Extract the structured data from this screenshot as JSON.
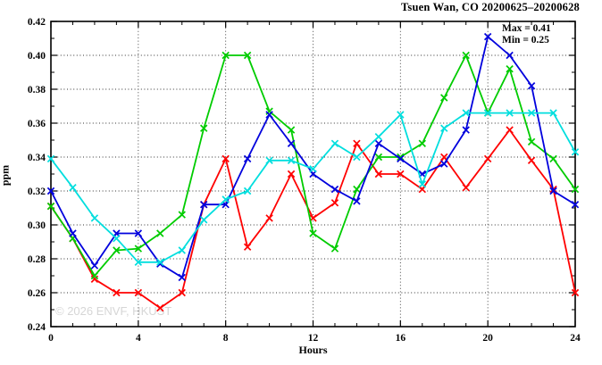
{
  "title": "Tsuen Wan, CO 20200625–20200628",
  "annotation": {
    "max_label": "Max = 0.41",
    "min_label": "Min = 0.25"
  },
  "watermark": "© 2026 ENVF, HKUST",
  "chart_data": {
    "type": "line",
    "title": "Tsuen Wan, CO 20200625–20200628",
    "xlabel": "Hours",
    "ylabel": "ppm",
    "xlim": [
      0,
      24
    ],
    "ylim": [
      0.24,
      0.42
    ],
    "x_ticks": [
      0,
      4,
      8,
      12,
      16,
      20,
      24
    ],
    "y_ticks": [
      0.24,
      0.26,
      0.28,
      0.3,
      0.32,
      0.34,
      0.36,
      0.38,
      0.4,
      0.42
    ],
    "x_minor_step": 1,
    "y_minor_step": 0.01,
    "grid": true,
    "legend": "none",
    "marker": "x",
    "x": [
      0,
      1,
      2,
      3,
      4,
      5,
      6,
      7,
      8,
      9,
      10,
      11,
      12,
      13,
      14,
      15,
      16,
      17,
      18,
      19,
      20,
      21,
      22,
      23,
      24
    ],
    "series": [
      {
        "name": "red",
        "color": "#ff0000",
        "values": [
          0.311,
          0.292,
          0.268,
          0.26,
          0.26,
          0.251,
          0.26,
          0.312,
          0.339,
          0.287,
          0.304,
          0.33,
          0.304,
          0.313,
          0.348,
          0.33,
          0.33,
          0.321,
          0.34,
          0.322,
          0.339,
          0.356,
          0.338,
          0.321,
          0.26
        ]
      },
      {
        "name": "green",
        "color": "#00cc00",
        "values": [
          0.311,
          0.292,
          0.27,
          0.285,
          0.286,
          0.295,
          0.306,
          0.357,
          0.4,
          0.4,
          0.367,
          0.356,
          0.295,
          0.286,
          0.321,
          0.34,
          0.34,
          0.348,
          0.375,
          0.4,
          0.366,
          0.392,
          0.349,
          0.339,
          0.321
        ]
      },
      {
        "name": "blue",
        "color": "#0000dd",
        "values": [
          0.32,
          0.295,
          0.276,
          0.295,
          0.295,
          0.277,
          0.269,
          0.312,
          0.312,
          0.339,
          0.365,
          0.348,
          0.33,
          0.321,
          0.314,
          0.348,
          0.339,
          0.33,
          0.336,
          0.356,
          0.411,
          0.4,
          0.382,
          0.32,
          0.312
        ]
      },
      {
        "name": "cyan",
        "color": "#00dede",
        "values": [
          0.339,
          0.322,
          0.304,
          0.292,
          0.278,
          0.278,
          0.285,
          0.303,
          0.315,
          0.32,
          0.338,
          0.338,
          0.333,
          0.348,
          0.34,
          0.352,
          0.365,
          0.324,
          0.357,
          0.366,
          0.366,
          0.366,
          0.366,
          0.366,
          0.343
        ]
      }
    ]
  }
}
